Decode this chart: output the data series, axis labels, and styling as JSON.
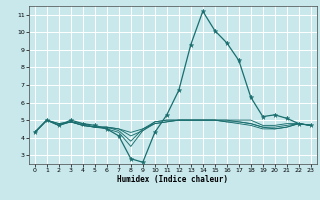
{
  "xlabel": "Humidex (Indice chaleur)",
  "bg_color": "#c8e8ec",
  "grid_color": "#ffffff",
  "line_color": "#1a6e6e",
  "xlim": [
    -0.5,
    23.5
  ],
  "ylim": [
    2.5,
    11.5
  ],
  "xticks": [
    0,
    1,
    2,
    3,
    4,
    5,
    6,
    7,
    8,
    9,
    10,
    11,
    12,
    13,
    14,
    15,
    16,
    17,
    18,
    19,
    20,
    21,
    22,
    23
  ],
  "yticks": [
    3,
    4,
    5,
    6,
    7,
    8,
    9,
    10,
    11
  ],
  "series": [
    {
      "y": [
        4.3,
        5.0,
        4.7,
        5.0,
        4.8,
        4.7,
        4.5,
        4.1,
        2.8,
        2.6,
        4.3,
        5.3,
        6.7,
        9.3,
        11.2,
        10.1,
        9.4,
        8.4,
        6.3,
        5.2,
        5.3,
        5.1,
        4.8,
        4.7
      ],
      "marker": true
    },
    {
      "y": [
        4.3,
        5.0,
        4.7,
        4.9,
        4.8,
        4.6,
        4.5,
        4.3,
        3.5,
        4.4,
        4.9,
        5.0,
        5.0,
        5.0,
        5.0,
        5.0,
        5.0,
        5.0,
        5.0,
        4.7,
        4.7,
        4.8,
        4.8,
        4.7
      ],
      "marker": false
    },
    {
      "y": [
        4.3,
        5.0,
        4.7,
        4.9,
        4.7,
        4.6,
        4.6,
        4.4,
        3.8,
        4.5,
        4.8,
        4.9,
        5.0,
        5.0,
        5.0,
        5.0,
        5.0,
        4.9,
        4.8,
        4.6,
        4.6,
        4.7,
        4.8,
        4.7
      ],
      "marker": false
    },
    {
      "y": [
        4.3,
        5.0,
        4.8,
        4.9,
        4.7,
        4.6,
        4.6,
        4.5,
        4.1,
        4.4,
        4.8,
        4.9,
        5.0,
        5.0,
        5.0,
        5.0,
        4.9,
        4.8,
        4.7,
        4.5,
        4.5,
        4.6,
        4.8,
        4.7
      ],
      "marker": false
    },
    {
      "y": [
        4.3,
        5.0,
        4.8,
        4.9,
        4.7,
        4.6,
        4.6,
        4.5,
        4.3,
        4.5,
        4.9,
        5.0,
        5.0,
        5.0,
        5.0,
        5.0,
        4.9,
        4.9,
        4.8,
        4.6,
        4.5,
        4.6,
        4.8,
        4.7
      ],
      "marker": false
    }
  ]
}
